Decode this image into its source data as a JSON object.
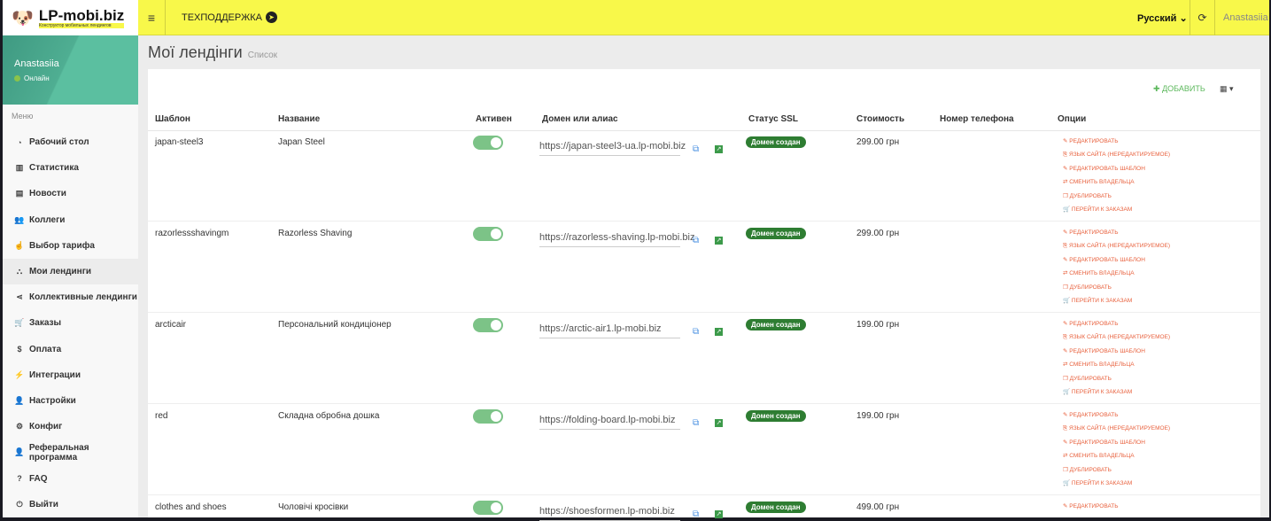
{
  "header": {
    "logo": "LP-mobi.biz",
    "logo_sub": "Конструктор мобильных лендингов",
    "support": "ТЕХПОДДЕРЖКА",
    "language": "Русский",
    "user": "Anastasiia"
  },
  "sidebar": {
    "user": "Anastasiia",
    "status": "Онлайн",
    "menu_label": "Меню",
    "items": [
      {
        "label": "Рабочий стол",
        "icon": "dashboard-icon"
      },
      {
        "label": "Статистика",
        "icon": "bar-chart-icon"
      },
      {
        "label": "Новости",
        "icon": "newspaper-icon"
      },
      {
        "label": "Коллеги",
        "icon": "users-icon"
      },
      {
        "label": "Выбор тарифа",
        "icon": "hand-pointer-icon"
      },
      {
        "label": "Мои лендинги",
        "icon": "sitemap-icon",
        "active": true
      },
      {
        "label": "Коллективные лендинги",
        "icon": "share-icon"
      },
      {
        "label": "Заказы",
        "icon": "cart-icon"
      },
      {
        "label": "Оплата",
        "icon": "dollar-icon"
      },
      {
        "label": "Интеграции",
        "icon": "plug-icon"
      },
      {
        "label": "Настройки",
        "icon": "user-icon"
      },
      {
        "label": "Конфиг",
        "icon": "cogs-icon"
      },
      {
        "label": "Реферальная программа",
        "icon": "user-plus-icon"
      },
      {
        "label": "FAQ",
        "icon": "question-icon"
      },
      {
        "label": "Выйти",
        "icon": "power-icon"
      }
    ]
  },
  "page": {
    "title": "Мої лендінги",
    "subtitle": "Список",
    "add_label": "ДОБАВИТЬ"
  },
  "table": {
    "headers": [
      "Шаблон",
      "Название",
      "Активен",
      "Домен или алиас",
      "Статус SSL",
      "Стоимость",
      "Номер телефона",
      "Опции"
    ],
    "options": [
      "РЕДАКТИРОВАТЬ",
      "ЯЗЫК САЙТА (НЕРЕДАКТИРУЕМОЕ)",
      "РЕДАКТИРОВАТЬ ШАБЛОН",
      "СМЕНИТЬ ВЛАДЕЛЬЦА",
      "ДУБЛИРОВАТЬ",
      "ПЕРЕЙТИ К ЗАКАЗАМ"
    ],
    "rows": [
      {
        "template": "japan-steel3",
        "name": "Japan Steel",
        "active": true,
        "domain": "https://japan-steel3-ua.lp-mobi.biz",
        "ssl": "Домен создан",
        "price": "299.00 грн",
        "phone": ""
      },
      {
        "template": "razorlessshavingm",
        "name": "Razorless Shaving",
        "active": true,
        "domain": "https://razorless-shaving.lp-mobi.biz",
        "ssl": "Домен создан",
        "price": "299.00 грн",
        "phone": ""
      },
      {
        "template": "arcticair",
        "name": "Персональний кондиціонер",
        "active": true,
        "domain": "https://arctic-air1.lp-mobi.biz",
        "ssl": "Домен создан",
        "price": "199.00 грн",
        "phone": ""
      },
      {
        "template": "red",
        "name": "Складна обробна дошка",
        "active": true,
        "domain": "https://folding-board.lp-mobi.biz",
        "ssl": "Домен создан",
        "price": "199.00 грн",
        "phone": ""
      },
      {
        "template": "clothes and shoes",
        "name": "Чоловічі кросівки",
        "active": true,
        "domain": "https://shoesformen.lp-mobi.biz",
        "ssl": "Домен создан",
        "price": "499.00 грн",
        "phone": ""
      }
    ]
  },
  "colors": {
    "header": "#f8f84a",
    "accent_green": "#2e7d32",
    "option_link": "#e8603c"
  }
}
